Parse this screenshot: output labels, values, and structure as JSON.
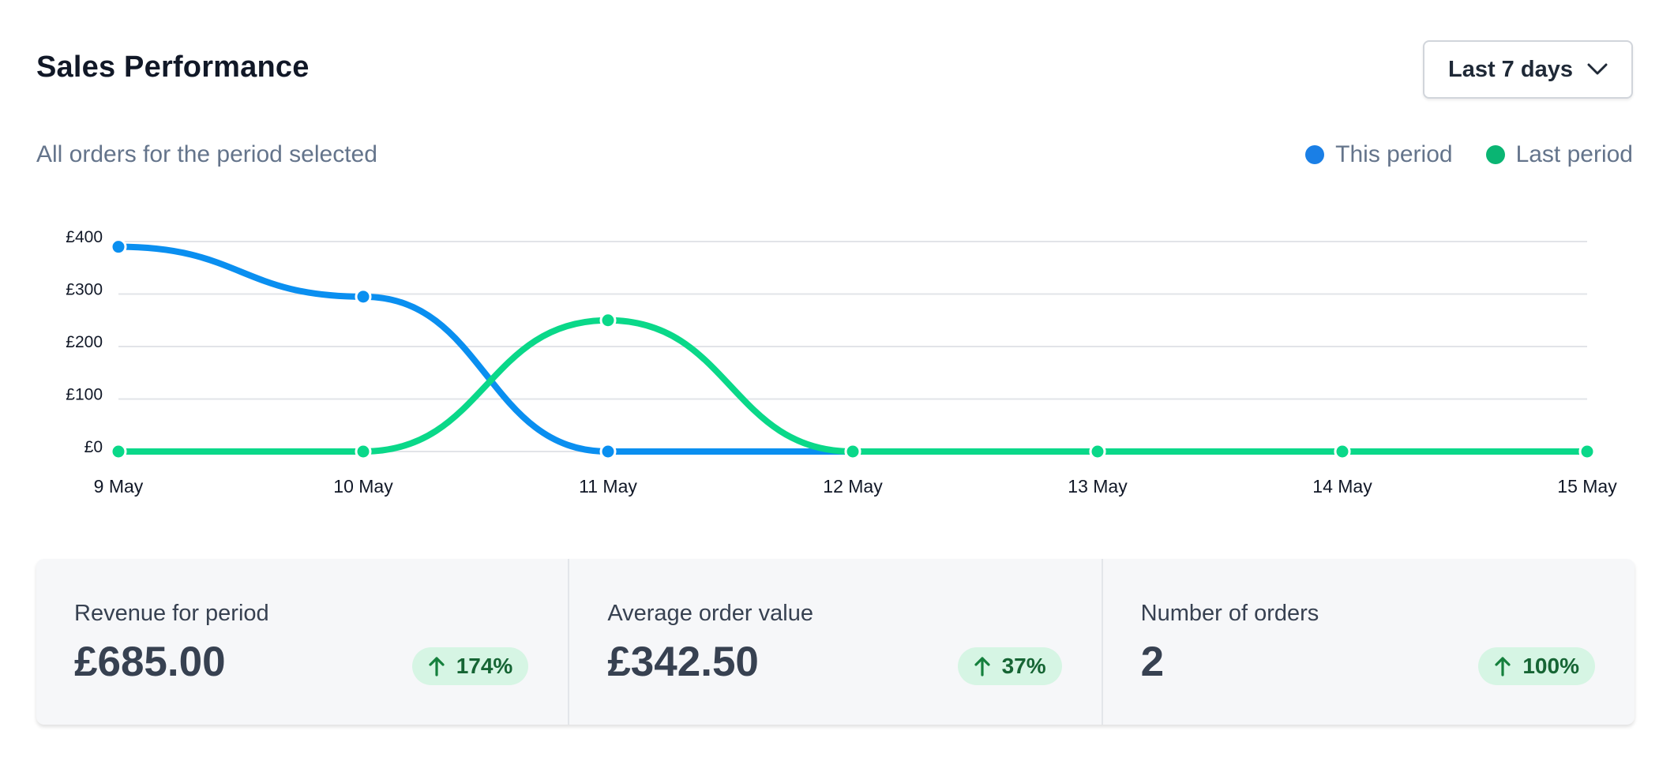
{
  "header": {
    "title": "Sales Performance",
    "range_selected": "Last 7 days"
  },
  "subtitle": "All orders for the period selected",
  "legend": {
    "this_period": "This period",
    "last_period": "Last period"
  },
  "colors": {
    "this_period": "#0a8ff0",
    "last_period": "#0ad889",
    "badge_bg": "#d6f5e4",
    "badge_text": "#166534"
  },
  "chart_data": {
    "type": "line",
    "x": [
      "9 May",
      "10 May",
      "11 May",
      "12 May",
      "13 May",
      "14 May",
      "15 May"
    ],
    "y_ticks": [
      "£400",
      "£300",
      "£200",
      "£100",
      "£0"
    ],
    "ylim": [
      0,
      400
    ],
    "series": [
      {
        "name": "This period",
        "values": [
          390,
          295,
          0,
          0,
          0,
          0,
          0
        ]
      },
      {
        "name": "Last period",
        "values": [
          0,
          0,
          250,
          0,
          0,
          0,
          0
        ]
      }
    ]
  },
  "stats": [
    {
      "label": "Revenue for period",
      "value": "£685.00",
      "change": "174%"
    },
    {
      "label": "Average order value",
      "value": "£342.50",
      "change": "37%"
    },
    {
      "label": "Number of orders",
      "value": "2",
      "change": "100%"
    }
  ]
}
